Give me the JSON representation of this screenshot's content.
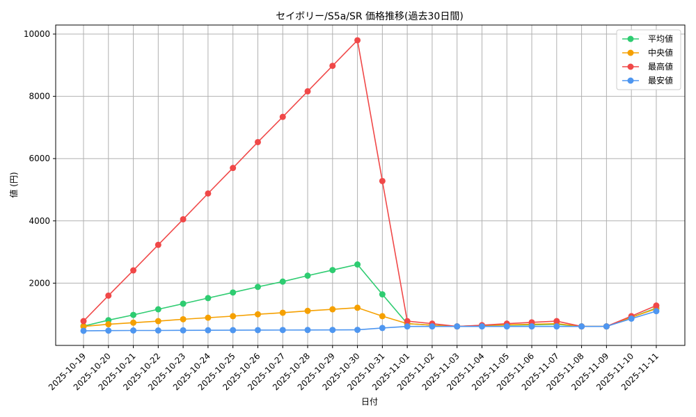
{
  "chart_data": {
    "type": "line",
    "title": "セイボリー/S5a/SR 価格推移(過去30日間)",
    "xlabel": "日付",
    "ylabel": "値 (円)",
    "categories": [
      "2025-10-19",
      "2025-10-20",
      "2025-10-21",
      "2025-10-22",
      "2025-10-23",
      "2025-10-24",
      "2025-10-25",
      "2025-10-26",
      "2025-10-27",
      "2025-10-28",
      "2025-10-29",
      "2025-10-30",
      "2025-10-31",
      "2025-11-01",
      "2025-11-02",
      "2025-11-03",
      "2025-11-04",
      "2025-11-05",
      "2025-11-06",
      "2025-11-07",
      "2025-11-08",
      "2025-11-09",
      "2025-11-10",
      "2025-11-11"
    ],
    "yticks": [
      2000,
      4000,
      6000,
      8000,
      10000
    ],
    "ylim": [
      0,
      10400
    ],
    "grid": true,
    "legend_position": "top-right",
    "series": [
      {
        "name": "平均値",
        "color": "#2ecc71",
        "values": [
          620,
          810,
          980,
          1160,
          1340,
          1520,
          1700,
          1880,
          2050,
          2240,
          2420,
          2600,
          1640,
          700,
          650,
          610,
          640,
          650,
          660,
          680,
          610,
          610,
          900,
          1200
        ]
      },
      {
        "name": "中央値",
        "color": "#f5a000",
        "values": [
          610,
          680,
          730,
          780,
          840,
          890,
          940,
          1000,
          1050,
          1110,
          1160,
          1210,
          940,
          700,
          650,
          610,
          640,
          660,
          680,
          700,
          610,
          610,
          900,
          1180
        ]
      },
      {
        "name": "最高値",
        "color": "#f04848",
        "values": [
          780,
          1600,
          2410,
          3230,
          4050,
          4880,
          5700,
          6530,
          7340,
          8160,
          8980,
          9800,
          5280,
          780,
          700,
          610,
          650,
          700,
          740,
          780,
          610,
          610,
          940,
          1280
        ]
      },
      {
        "name": "最安値",
        "color": "#4e96f0",
        "values": [
          470,
          475,
          480,
          480,
          485,
          488,
          490,
          492,
          494,
          496,
          498,
          500,
          560,
          610,
          610,
          610,
          610,
          610,
          610,
          610,
          610,
          610,
          860,
          1100
        ]
      }
    ]
  }
}
